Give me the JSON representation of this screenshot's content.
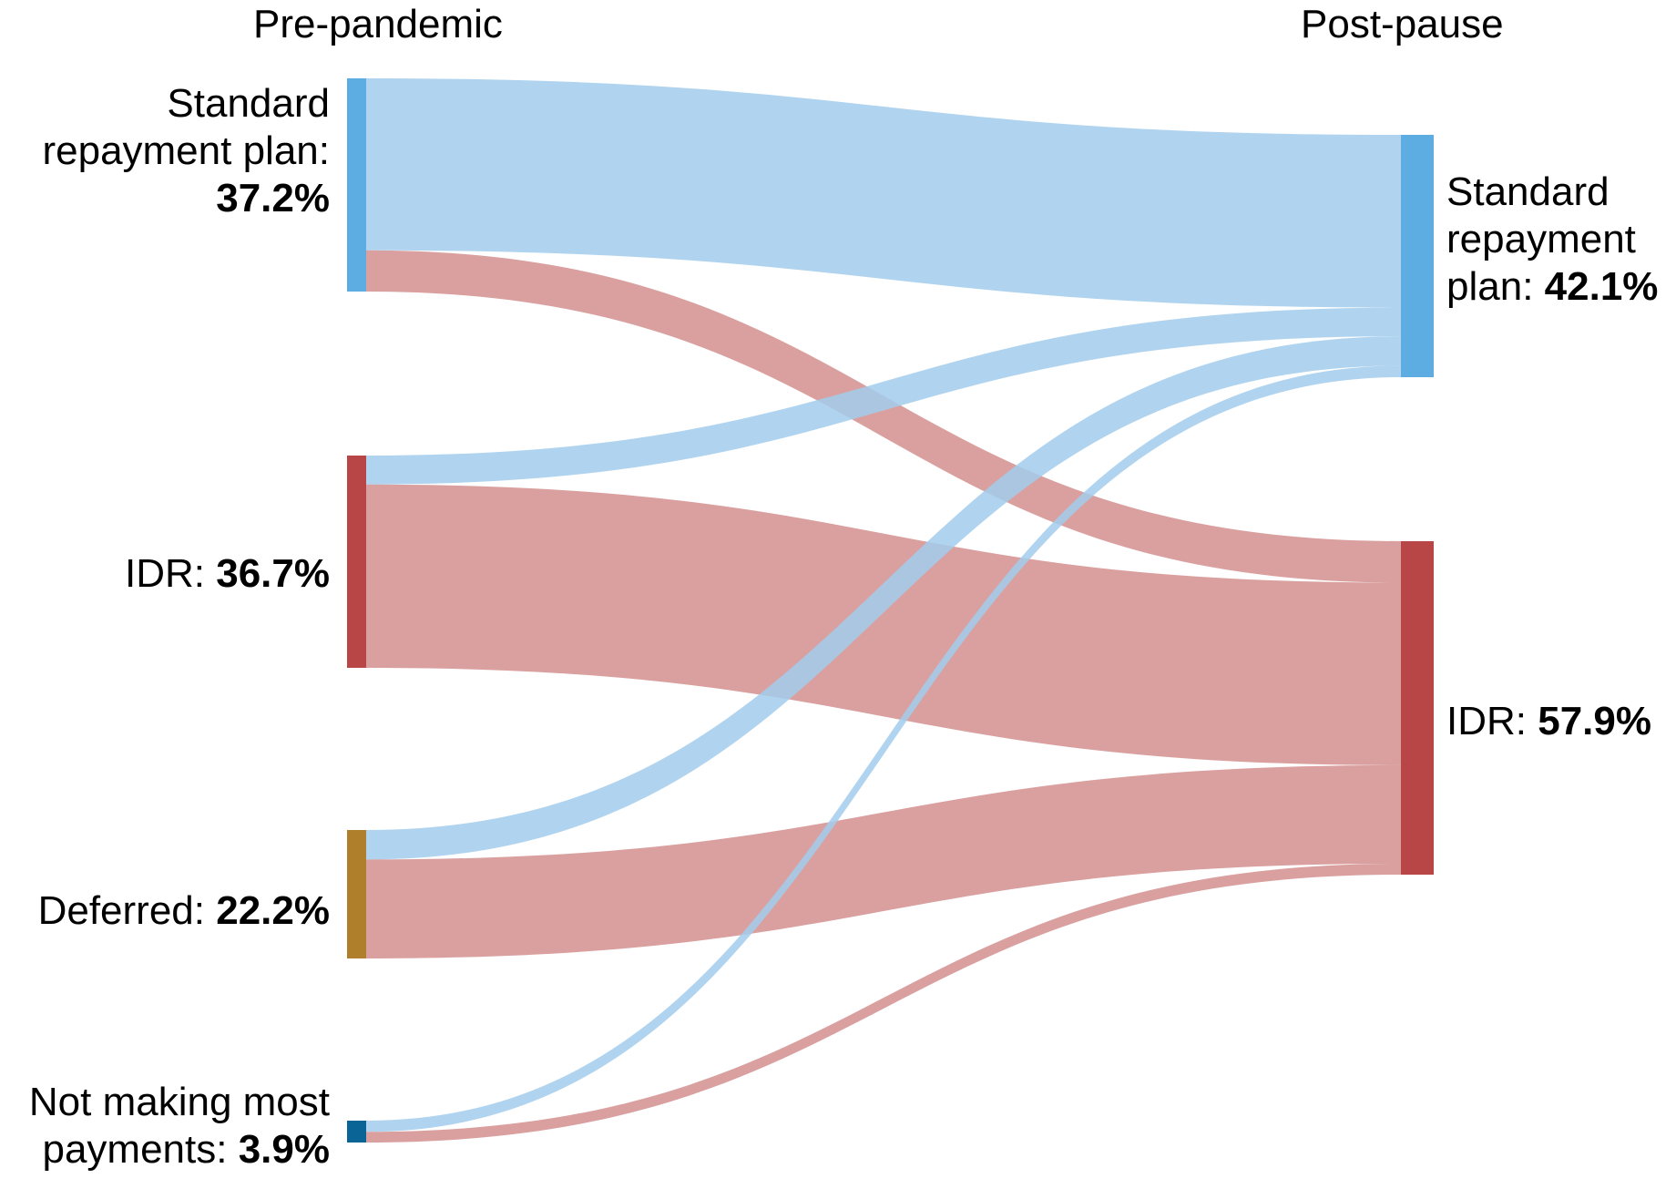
{
  "chart_data": {
    "type": "sankey",
    "columns": [
      "Pre-pandemic",
      "Post-pause"
    ],
    "source_nodes": [
      {
        "id": "std_pre",
        "label": "Standard repayment plan:",
        "value_label": "37.2%",
        "value": 37.2,
        "color": "#5dade2"
      },
      {
        "id": "idr_pre",
        "label": "IDR:",
        "value_label": "36.7%",
        "value": 36.7,
        "color": "#b94646"
      },
      {
        "id": "def_pre",
        "label": "Deferred:",
        "value_label": "22.2%",
        "value": 22.2,
        "color": "#b07f2b"
      },
      {
        "id": "nmp_pre",
        "label": "Not making most payments:",
        "value_label": "3.9%",
        "value": 3.9,
        "color": "#0a6496"
      }
    ],
    "target_nodes": [
      {
        "id": "std_post",
        "label": "Standard repayment plan:",
        "value_label": "42.1%",
        "value": 42.1,
        "color": "#5dade2"
      },
      {
        "id": "idr_post",
        "label": "IDR:",
        "value_label": "57.9%",
        "value": 57.9,
        "color": "#b94646"
      }
    ],
    "flows": [
      {
        "source": "std_pre",
        "target": "std_post",
        "value": 30.0
      },
      {
        "source": "std_pre",
        "target": "idr_post",
        "value": 7.2
      },
      {
        "source": "idr_pre",
        "target": "std_post",
        "value": 5.0
      },
      {
        "source": "idr_pre",
        "target": "idr_post",
        "value": 31.7
      },
      {
        "source": "def_pre",
        "target": "std_post",
        "value": 5.1
      },
      {
        "source": "def_pre",
        "target": "idr_post",
        "value": 17.1
      },
      {
        "source": "nmp_pre",
        "target": "std_post",
        "value": 2.0
      },
      {
        "source": "nmp_pre",
        "target": "idr_post",
        "value": 1.9
      }
    ],
    "flow_colors": {
      "std_post": "#a2cdec",
      "idr_post": "#d48f8f"
    }
  }
}
